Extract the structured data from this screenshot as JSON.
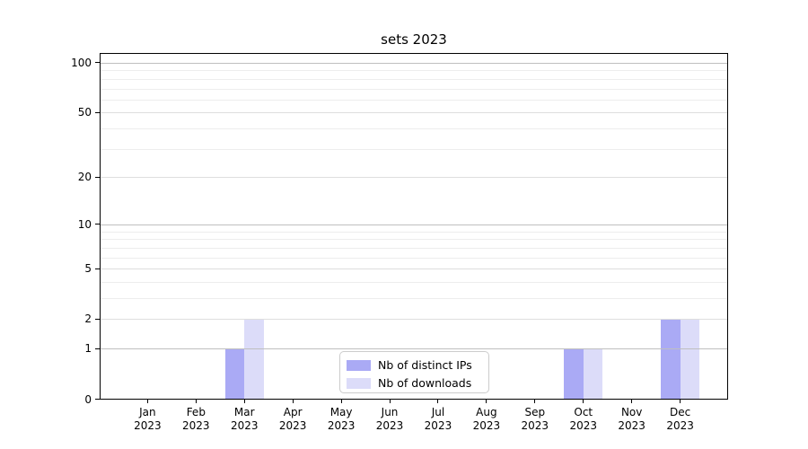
{
  "chart_data": {
    "type": "bar",
    "title": "sets 2023",
    "months": [
      "Jan",
      "Feb",
      "Mar",
      "Apr",
      "May",
      "Jun",
      "Jul",
      "Aug",
      "Sep",
      "Oct",
      "Nov",
      "Dec"
    ],
    "year": "2023",
    "series": [
      {
        "name": "Nb of distinct IPs",
        "color": "#aaaaf5",
        "values": [
          0,
          0,
          1,
          0,
          0,
          0,
          0,
          0,
          0,
          1,
          0,
          2
        ]
      },
      {
        "name": "Nb of downloads",
        "color": "#dcdcf9",
        "values": [
          0,
          0,
          2,
          0,
          0,
          0,
          0,
          0,
          0,
          1,
          0,
          2
        ]
      }
    ],
    "yscale": "log1p",
    "ylim": [
      0,
      115
    ],
    "yticks_labeled": [
      0,
      1,
      2,
      5,
      10,
      20,
      50,
      100
    ],
    "gridlines_decade": [
      1,
      10,
      100
    ],
    "gridlines_labeled_minor": [
      2,
      5,
      20,
      50
    ],
    "gridlines_minor": [
      3,
      4,
      6,
      7,
      8,
      9,
      30,
      40,
      60,
      70,
      80,
      90
    ],
    "grid": "horizontal",
    "legend_position": "lower center inside plot"
  }
}
